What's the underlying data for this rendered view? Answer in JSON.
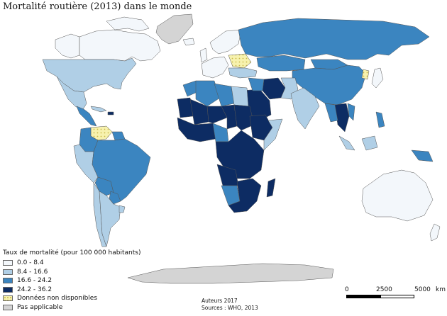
{
  "title": "Mortalité routière (2013) dans le monde",
  "colors": {
    "class1": "#f3f7fb",
    "class2": "#b0cfe6",
    "class3": "#3b85c0",
    "class4": "#0d2c63",
    "no_data": "#f7f2ae",
    "not_applicable": "#d4d4d4",
    "border": "#555555"
  },
  "legend": {
    "title": "Taux de mortalité (pour 100 000 habitants)",
    "items": [
      {
        "label": "0.0 - 8.4",
        "color": "#f3f7fb"
      },
      {
        "label": "8.4 - 16.6",
        "color": "#b0cfe6"
      },
      {
        "label": "16.6 - 24.2",
        "color": "#3b85c0"
      },
      {
        "label": "24.2 - 36.2",
        "color": "#0d2c63"
      },
      {
        "label": "Données non disponibles",
        "color": "#f7f2ae",
        "pattern": "dots"
      },
      {
        "label": "Pas applicable",
        "color": "#d4d4d4"
      }
    ]
  },
  "credits": {
    "authors": "Auteurs 2017",
    "sources": "Sources : WHO, 2013"
  },
  "scale": {
    "ticks": [
      "0",
      "2500",
      "5000"
    ],
    "unit": "km"
  }
}
